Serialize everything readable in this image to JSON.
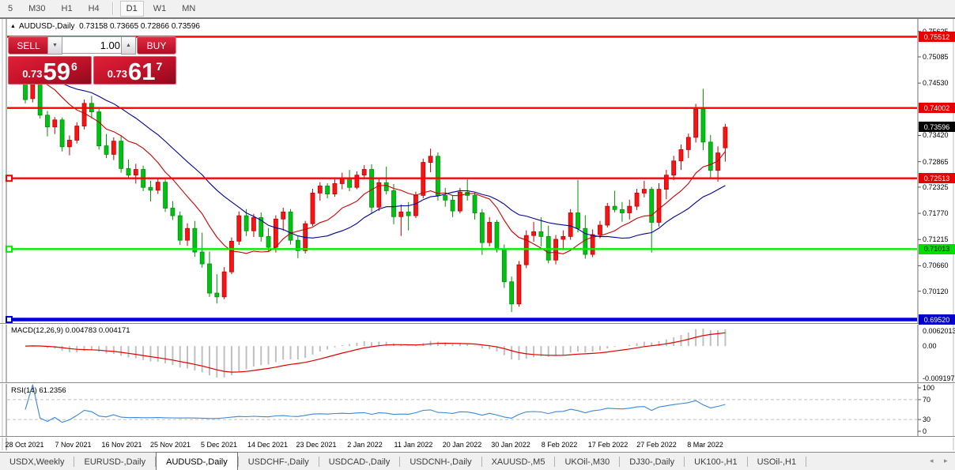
{
  "toolbar": {
    "timeframes": [
      {
        "label": "5",
        "active": false
      },
      {
        "label": "M30",
        "active": false
      },
      {
        "label": "H1",
        "active": false
      },
      {
        "label": "H4",
        "active": false
      },
      {
        "label": "D1",
        "active": true
      },
      {
        "label": "W1",
        "active": false
      },
      {
        "label": "MN",
        "active": false
      }
    ]
  },
  "chart": {
    "collapse_arrow": "▲",
    "symbol": "AUDUSD-,Daily",
    "ohlc_text": "0.73158 0.73665 0.72866 0.73596"
  },
  "trade_panel": {
    "sell_label": "SELL",
    "buy_label": "BUY",
    "volume": "1.00",
    "spin_down_icon": "▼",
    "spin_up_icon": "▲",
    "sell_price": {
      "frac": "0.73",
      "big": "59",
      "sup": "6"
    },
    "buy_price": {
      "frac": "0.73",
      "big": "61",
      "sup": "7"
    }
  },
  "price_axis": {
    "ticks": [
      "0.75625",
      "0.75085",
      "0.74530",
      "0.73420",
      "0.72865",
      "0.72325",
      "0.71770",
      "0.71215",
      "0.70660",
      "0.70120"
    ],
    "badges": [
      {
        "text": "0.75512",
        "bg": "#e60000",
        "fg": "#ffffff"
      },
      {
        "text": "0.74002",
        "bg": "#e60000",
        "fg": "#ffffff"
      },
      {
        "text": "0.73596",
        "bg": "#000000",
        "fg": "#ffffff"
      },
      {
        "text": "0.72513",
        "bg": "#e60000",
        "fg": "#ffffff"
      },
      {
        "text": "0.71013",
        "bg": "#00dd00",
        "fg": "#000000"
      },
      {
        "text": "0.69520",
        "bg": "#0000cc",
        "fg": "#ffffff"
      }
    ]
  },
  "macd_panel": {
    "label": "MACD(12,26,9) 0.004783 0.004171",
    "max_label": "0.0062013",
    "zero_label": "0.00",
    "min_label": "-0.0091973"
  },
  "rsi_panel": {
    "label": "RSI(14) 61.2356",
    "levels": [
      "100",
      "70",
      "30",
      "0"
    ]
  },
  "tabs": {
    "items": [
      "USDX,Weekly",
      "EURUSD-,Daily",
      "AUDUSD-,Daily",
      "USDCHF-,Daily",
      "USDCAD-,Daily",
      "USDCNH-,Daily",
      "XAUUSD-,M5",
      "UKOil-,M30",
      "DJ30-,Daily",
      "UK100-,H1",
      "USOil-,H1"
    ],
    "active_index": 2,
    "scroll_left_icon": "◂",
    "scroll_right_icon": "▸"
  },
  "colors": {
    "candle_up": "#f51515",
    "candle_up_border": "#c40000",
    "candle_down": "#00c213",
    "candle_down_border": "#009106",
    "ma_fast": "#cc0000",
    "ma_slow": "#000099",
    "macd_histogram": "#c0c0c0",
    "macd_signal": "#e00000",
    "rsi_line": "#3b87d9",
    "rsi_levels": "#c0c0c0"
  },
  "chart_data": {
    "type": "candlestick",
    "title": "AUDUSD-,Daily",
    "current_bar": {
      "open": 0.73158,
      "high": 0.73665,
      "low": 0.72866,
      "close": 0.73596
    },
    "x_labels": [
      "28 Oct 2021",
      "7 Nov 2021",
      "16 Nov 2021",
      "25 Nov 2021",
      "5 Dec 2021",
      "14 Dec 2021",
      "23 Dec 2021",
      "2 Jan 2022",
      "11 Jan 2022",
      "20 Jan 2022",
      "30 Jan 2022",
      "8 Feb 2022",
      "17 Feb 2022",
      "27 Feb 2022",
      "8 Mar 2022"
    ],
    "ylim": [
      0.689,
      0.758
    ],
    "grid": false,
    "overlays": [
      {
        "name": "ma-fast",
        "type": "sma",
        "period": 10
      },
      {
        "name": "ma-slow",
        "type": "sma",
        "period": 21
      }
    ],
    "hlines": [
      {
        "price": 0.75512,
        "color": "#fe0000",
        "width": 2.4,
        "marker": false
      },
      {
        "price": 0.74002,
        "color": "#fe0000",
        "width": 2.4,
        "marker": false
      },
      {
        "price": 0.72513,
        "color": "#fe0000",
        "width": 2.4,
        "marker": true
      },
      {
        "price": 0.71013,
        "color": "#00ee00",
        "width": 2.4,
        "marker": true
      },
      {
        "price": 0.6952,
        "color": "#0000e0",
        "width": 4.5,
        "marker": true
      }
    ],
    "indicators": [
      {
        "name": "MACD",
        "params": [
          12,
          26,
          9
        ],
        "main": 0.004783,
        "signal": 0.004171,
        "range": [
          -0.0091973,
          0.0062013
        ]
      },
      {
        "name": "RSI",
        "params": [
          14
        ],
        "value": 61.2356,
        "levels": [
          100,
          70,
          30,
          0
        ]
      }
    ],
    "candles": [
      [
        0.7453,
        0.747,
        0.741,
        0.7418
      ],
      [
        0.742,
        0.7455,
        0.7412,
        0.745
      ],
      [
        0.7452,
        0.7462,
        0.7378,
        0.7385
      ],
      [
        0.7385,
        0.7394,
        0.734,
        0.736
      ],
      [
        0.736,
        0.7381,
        0.7345,
        0.7375
      ],
      [
        0.7375,
        0.738,
        0.7308,
        0.7318
      ],
      [
        0.7318,
        0.7342,
        0.73,
        0.7332
      ],
      [
        0.7332,
        0.737,
        0.7325,
        0.7362
      ],
      [
        0.7362,
        0.7418,
        0.7355,
        0.741
      ],
      [
        0.741,
        0.7426,
        0.7378,
        0.7392
      ],
      [
        0.7392,
        0.7398,
        0.7312,
        0.732
      ],
      [
        0.732,
        0.7345,
        0.7294,
        0.7302
      ],
      [
        0.7302,
        0.7338,
        0.729,
        0.733
      ],
      [
        0.733,
        0.7341,
        0.7263,
        0.7272
      ],
      [
        0.7272,
        0.7291,
        0.725,
        0.7258
      ],
      [
        0.7258,
        0.7282,
        0.724,
        0.727
      ],
      [
        0.727,
        0.7278,
        0.7224,
        0.7232
      ],
      [
        0.7232,
        0.7246,
        0.7202,
        0.7226
      ],
      [
        0.7226,
        0.7251,
        0.7218,
        0.7243
      ],
      [
        0.7243,
        0.7249,
        0.718,
        0.7188
      ],
      [
        0.7188,
        0.7203,
        0.7163,
        0.7172
      ],
      [
        0.7172,
        0.7181,
        0.711,
        0.712
      ],
      [
        0.712,
        0.7156,
        0.7108,
        0.7145
      ],
      [
        0.7145,
        0.7161,
        0.7085,
        0.7095
      ],
      [
        0.7095,
        0.7136,
        0.7062,
        0.707
      ],
      [
        0.707,
        0.7096,
        0.7,
        0.7008
      ],
      [
        0.7008,
        0.7048,
        0.6986,
        0.7
      ],
      [
        0.7,
        0.7063,
        0.6995,
        0.7053
      ],
      [
        0.7053,
        0.7126,
        0.7048,
        0.7118
      ],
      [
        0.7118,
        0.7181,
        0.711,
        0.7172
      ],
      [
        0.7172,
        0.7186,
        0.7129,
        0.714
      ],
      [
        0.714,
        0.7176,
        0.7127,
        0.7168
      ],
      [
        0.7168,
        0.7179,
        0.7117,
        0.7128
      ],
      [
        0.7128,
        0.7146,
        0.7097,
        0.7105
      ],
      [
        0.7105,
        0.7173,
        0.7094,
        0.7165
      ],
      [
        0.7165,
        0.7189,
        0.714,
        0.718
      ],
      [
        0.718,
        0.7186,
        0.7111,
        0.712
      ],
      [
        0.712,
        0.7129,
        0.7082,
        0.7098
      ],
      [
        0.7098,
        0.7161,
        0.7092,
        0.7155
      ],
      [
        0.7155,
        0.7229,
        0.715,
        0.722
      ],
      [
        0.722,
        0.7243,
        0.7204,
        0.7235
      ],
      [
        0.7235,
        0.7241,
        0.7209,
        0.7218
      ],
      [
        0.7218,
        0.7249,
        0.7212,
        0.724
      ],
      [
        0.724,
        0.7263,
        0.7228,
        0.7252
      ],
      [
        0.7252,
        0.7269,
        0.7224,
        0.7232
      ],
      [
        0.7232,
        0.7266,
        0.7228,
        0.7258
      ],
      [
        0.7258,
        0.7279,
        0.7249,
        0.727
      ],
      [
        0.727,
        0.7281,
        0.7178,
        0.719
      ],
      [
        0.719,
        0.7251,
        0.7182,
        0.7242
      ],
      [
        0.7242,
        0.7276,
        0.7217,
        0.7225
      ],
      [
        0.7225,
        0.7239,
        0.7154,
        0.717
      ],
      [
        0.717,
        0.7196,
        0.7129,
        0.718
      ],
      [
        0.718,
        0.7201,
        0.7141,
        0.7172
      ],
      [
        0.7172,
        0.7223,
        0.7167,
        0.7215
      ],
      [
        0.7215,
        0.7293,
        0.7209,
        0.7285
      ],
      [
        0.7285,
        0.7314,
        0.7264,
        0.7298
      ],
      [
        0.7298,
        0.7306,
        0.7204,
        0.7215
      ],
      [
        0.7215,
        0.7231,
        0.7191,
        0.7205
      ],
      [
        0.7205,
        0.7216,
        0.7169,
        0.7182
      ],
      [
        0.7182,
        0.7231,
        0.7177,
        0.7222
      ],
      [
        0.7222,
        0.7249,
        0.7204,
        0.7215
      ],
      [
        0.7215,
        0.7221,
        0.7164,
        0.7178
      ],
      [
        0.7178,
        0.7186,
        0.7089,
        0.7115
      ],
      [
        0.7115,
        0.7169,
        0.7107,
        0.7158
      ],
      [
        0.7158,
        0.7163,
        0.7094,
        0.7102
      ],
      [
        0.7102,
        0.7111,
        0.7019,
        0.7032
      ],
      [
        0.7032,
        0.7043,
        0.6968,
        0.6985
      ],
      [
        0.6985,
        0.7076,
        0.6979,
        0.7068
      ],
      [
        0.7068,
        0.7141,
        0.7061,
        0.713
      ],
      [
        0.713,
        0.7159,
        0.7117,
        0.7138
      ],
      [
        0.7138,
        0.7169,
        0.7107,
        0.7128
      ],
      [
        0.7128,
        0.7151,
        0.7071,
        0.7078
      ],
      [
        0.7078,
        0.7131,
        0.7069,
        0.7122
      ],
      [
        0.7122,
        0.7141,
        0.7099,
        0.7128
      ],
      [
        0.7128,
        0.7186,
        0.7121,
        0.7178
      ],
      [
        0.7178,
        0.7248,
        0.7137,
        0.7145
      ],
      [
        0.7145,
        0.7173,
        0.7081,
        0.709
      ],
      [
        0.709,
        0.7143,
        0.7084,
        0.7132
      ],
      [
        0.7132,
        0.7161,
        0.7124,
        0.7152
      ],
      [
        0.7152,
        0.7199,
        0.7147,
        0.7192
      ],
      [
        0.7192,
        0.7225,
        0.7179,
        0.7185
      ],
      [
        0.7185,
        0.7201,
        0.7159,
        0.7178
      ],
      [
        0.7178,
        0.7206,
        0.7164,
        0.7192
      ],
      [
        0.7192,
        0.7229,
        0.7184,
        0.722
      ],
      [
        0.722,
        0.7246,
        0.7211,
        0.7228
      ],
      [
        0.7228,
        0.7233,
        0.7094,
        0.7158
      ],
      [
        0.7158,
        0.7241,
        0.7149,
        0.7228
      ],
      [
        0.7228,
        0.7269,
        0.7207,
        0.7258
      ],
      [
        0.7258,
        0.7299,
        0.7247,
        0.7288
      ],
      [
        0.7288,
        0.7323,
        0.7269,
        0.7312
      ],
      [
        0.7312,
        0.7346,
        0.7294,
        0.7338
      ],
      [
        0.7338,
        0.7409,
        0.7327,
        0.7398
      ],
      [
        0.7398,
        0.7441,
        0.7311,
        0.7328
      ],
      [
        0.7328,
        0.7343,
        0.7251,
        0.7268
      ],
      [
        0.7268,
        0.7319,
        0.7244,
        0.7305
      ],
      [
        0.73158,
        0.73665,
        0.72866,
        0.73596
      ]
    ]
  }
}
